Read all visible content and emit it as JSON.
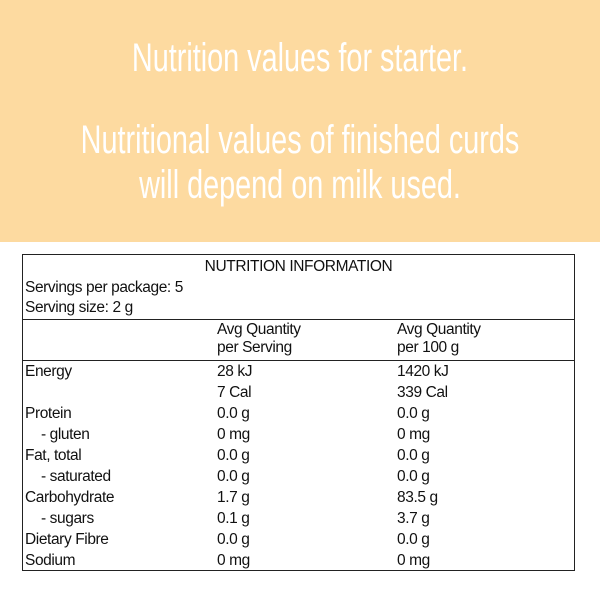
{
  "banner": {
    "line1": "Nutrition values for starter.",
    "line2": "Nutritional values of finished curds",
    "line3": "will depend on milk used.",
    "bg": "#FDDAA0"
  },
  "table": {
    "title": "NUTRITION INFORMATION",
    "servings_per_package": "Servings per package: 5",
    "serving_size": "Serving size: 2 g",
    "col1_header": [
      "Avg Quantity",
      "per Serving"
    ],
    "col2_header": [
      "Avg Quantity",
      "per 100 g"
    ],
    "rows": [
      {
        "label": "Energy",
        "serving": "28 kJ",
        "per100": "1420 kJ"
      },
      {
        "label": "",
        "serving": "7 Cal",
        "per100": "339 Cal"
      },
      {
        "label": "Protein",
        "serving": "0.0 g",
        "per100": "0.0 g"
      },
      {
        "label": "  - gluten",
        "serving": "0 mg",
        "per100": "0 mg"
      },
      {
        "label": "Fat, total",
        "serving": "0.0 g",
        "per100": "0.0 g"
      },
      {
        "label": "  - saturated",
        "serving": "0.0 g",
        "per100": "0.0 g"
      },
      {
        "label": "Carbohydrate",
        "serving": "1.7 g",
        "per100": "83.5 g"
      },
      {
        "label": "  - sugars",
        "serving": "0.1 g",
        "per100": "3.7 g"
      },
      {
        "label": "Dietary Fibre",
        "serving": "0.0 g",
        "per100": "0.0 g"
      },
      {
        "label": "Sodium",
        "serving": "0 mg",
        "per100": "0 mg"
      }
    ]
  }
}
